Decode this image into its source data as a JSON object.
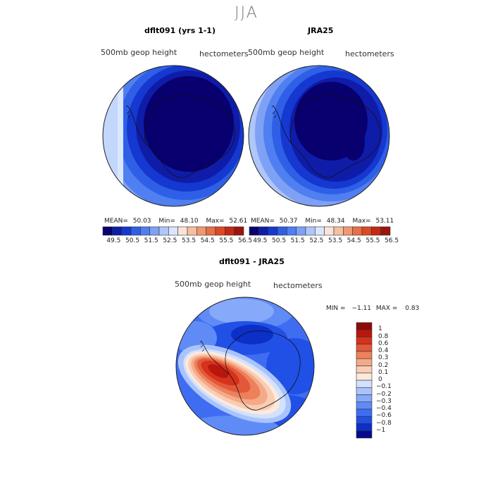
{
  "season": "JJA",
  "colors": {
    "level_scale": [
      "#08006f",
      "#0f1ca8",
      "#1438d0",
      "#2e5fe6",
      "#4f7ff0",
      "#7ea1f5",
      "#aec6fa",
      "#d9e6fc",
      "#fbe4d6",
      "#f6bfa2",
      "#f09870",
      "#e86f46",
      "#dc4a25",
      "#c42a13",
      "#9a140c"
    ],
    "diff_scale": [
      "#050a8a",
      "#0c2fc8",
      "#2150e6",
      "#3f6df2",
      "#5f8bf6",
      "#86a9f9",
      "#aac4fb",
      "#d2e1fd",
      "#fde9dc",
      "#f8cdb4",
      "#f4aa88",
      "#ec815c",
      "#e4583a",
      "#d6321c",
      "#b8170e",
      "#8d0b06"
    ]
  },
  "panels": [
    {
      "title": "dflt091 (yrs 1-1)",
      "variable": "500mb  geop height",
      "units": "hectometers",
      "stats": {
        "mean_label": "MEAN=",
        "mean": "50.03",
        "min_label": "Min=",
        "min": "48.10",
        "max_label": "Max=",
        "max": "52.61"
      }
    },
    {
      "title": "JRA25",
      "variable": "500mb  geop height",
      "units": "hectometers",
      "stats": {
        "mean_label": "MEAN=",
        "mean": "50.37",
        "min_label": "Min=",
        "min": "48.34",
        "max_label": "Max=",
        "max": "53.11"
      }
    },
    {
      "title": "dflt091 - JRA25",
      "variable": "500mb  geop height",
      "units": "hectometers",
      "stats": {
        "min_label": "MIN =",
        "min": "−1.11",
        "max_label": "MAX =",
        "max": "0.83"
      }
    }
  ],
  "chart_data": [
    {
      "type": "heatmap",
      "title": "dflt091 (yrs 1-1)",
      "subtitle": "500mb  geop height",
      "units": "hectometers",
      "projection": "south polar stereographic",
      "mean": 50.03,
      "min": 48.1,
      "max": 52.61,
      "colorbar_ticks": [
        "49.5",
        "50.5",
        "51.5",
        "52.5",
        "53.5",
        "54.5",
        "55.5",
        "56.5"
      ],
      "colorbar_levels": 15
    },
    {
      "type": "heatmap",
      "title": "JRA25",
      "subtitle": "500mb  geop height",
      "units": "hectometers",
      "projection": "south polar stereographic",
      "mean": 50.37,
      "min": 48.34,
      "max": 53.11,
      "colorbar_ticks": [
        "49.5",
        "50.5",
        "51.5",
        "52.5",
        "53.5",
        "54.5",
        "55.5",
        "56.5"
      ],
      "colorbar_levels": 15
    },
    {
      "type": "heatmap",
      "title": "dflt091 - JRA25",
      "subtitle": "500mb  geop height",
      "units": "hectometers",
      "projection": "south polar stereographic",
      "min": -1.11,
      "max": 0.83,
      "colorbar_ticks": [
        "1",
        "0.8",
        "0.6",
        "0.4",
        "0.3",
        "0.2",
        "0.1",
        "0",
        "−0.1",
        "−0.2",
        "−0.3",
        "−0.4",
        "−0.6",
        "−0.8",
        "−1"
      ],
      "colorbar_levels": 16
    }
  ]
}
